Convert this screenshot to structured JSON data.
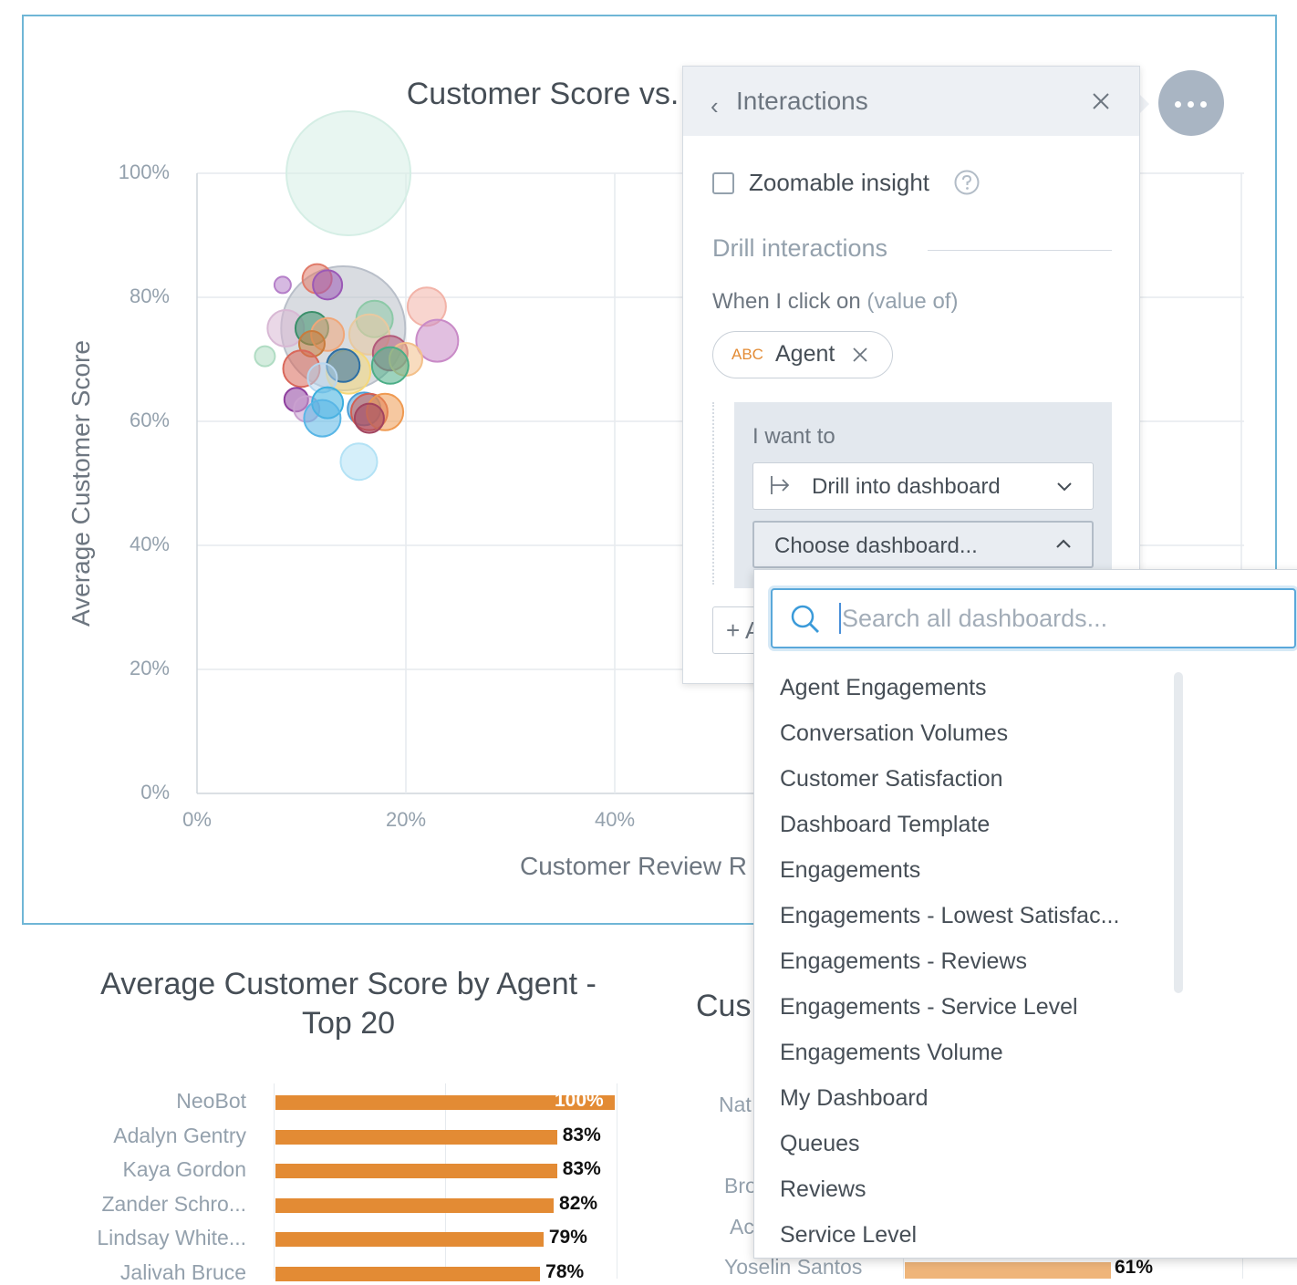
{
  "scatter_chart": {
    "title": "Customer Score vs.",
    "y_axis_title": "Average Customer Score",
    "x_axis_title": "Customer Review R",
    "options_icon": "more-horizontal-icon",
    "chart_data": {
      "type": "scatter",
      "title": "Customer Score vs.",
      "xlabel": "Customer Review R",
      "ylabel": "Average Customer Score",
      "xlim": [
        0,
        100
      ],
      "ylim": [
        0,
        100
      ],
      "x_ticks": [
        "0%",
        "20%",
        "40%"
      ],
      "y_ticks": [
        "0%",
        "20%",
        "40%",
        "60%",
        "80%",
        "100%"
      ],
      "grid": true,
      "points": [
        {
          "x": 14.5,
          "y": 100,
          "size": 68,
          "color": "#d5eee5"
        },
        {
          "x": 14,
          "y": 75,
          "size": 68,
          "color": "#b9bfc9"
        },
        {
          "x": 11.5,
          "y": 83,
          "size": 16,
          "color": "#e07b6a"
        },
        {
          "x": 12.5,
          "y": 82,
          "size": 16,
          "color": "#9b59b6"
        },
        {
          "x": 8.2,
          "y": 82,
          "size": 9,
          "color": "#b57fc9"
        },
        {
          "x": 22,
          "y": 78.5,
          "size": 21,
          "color": "#f2b3a8"
        },
        {
          "x": 23,
          "y": 73,
          "size": 23,
          "color": "#c98bc7"
        },
        {
          "x": 8.5,
          "y": 75,
          "size": 20,
          "color": "#d8b8d4"
        },
        {
          "x": 11,
          "y": 75,
          "size": 18,
          "color": "#3a8f6a"
        },
        {
          "x": 17,
          "y": 76.5,
          "size": 20,
          "color": "#8cc9a7"
        },
        {
          "x": 16.5,
          "y": 74,
          "size": 22,
          "color": "#e8c9a0"
        },
        {
          "x": 12.5,
          "y": 74,
          "size": 18,
          "color": "#f0a678"
        },
        {
          "x": 11,
          "y": 72.5,
          "size": 14,
          "color": "#c97b3c"
        },
        {
          "x": 6.5,
          "y": 70.5,
          "size": 11,
          "color": "#b0dcc3"
        },
        {
          "x": 18.5,
          "y": 71,
          "size": 19,
          "color": "#b25a7a"
        },
        {
          "x": 20,
          "y": 70,
          "size": 18,
          "color": "#f3c08a"
        },
        {
          "x": 18.5,
          "y": 69,
          "size": 20,
          "color": "#4cae87"
        },
        {
          "x": 14.5,
          "y": 68,
          "size": 24,
          "color": "#f5d87a"
        },
        {
          "x": 14,
          "y": 69,
          "size": 18,
          "color": "#2d6fa3"
        },
        {
          "x": 10,
          "y": 68.5,
          "size": 20,
          "color": "#d9675a"
        },
        {
          "x": 12,
          "y": 67,
          "size": 16,
          "color": "#b7d6ef"
        },
        {
          "x": 9.5,
          "y": 63.5,
          "size": 13,
          "color": "#8e3f9e"
        },
        {
          "x": 10.5,
          "y": 62,
          "size": 14,
          "color": "#c9a0cf"
        },
        {
          "x": 12.5,
          "y": 63,
          "size": 17,
          "color": "#3aaede"
        },
        {
          "x": 12,
          "y": 60.5,
          "size": 20,
          "color": "#59b6e6"
        },
        {
          "x": 16,
          "y": 62,
          "size": 18,
          "color": "#4c9fd6"
        },
        {
          "x": 16.5,
          "y": 61.5,
          "size": 20,
          "color": "#d45f52"
        },
        {
          "x": 18,
          "y": 61.5,
          "size": 20,
          "color": "#ef9a52"
        },
        {
          "x": 16.5,
          "y": 60.5,
          "size": 16,
          "color": "#a2445f"
        },
        {
          "x": 15.5,
          "y": 53.5,
          "size": 20,
          "color": "#b3e2f5"
        }
      ]
    }
  },
  "interactions_panel": {
    "title": "Interactions",
    "back_icon": "chevron-left-icon",
    "close_icon": "close-icon",
    "zoomable_label": "Zoomable insight",
    "zoomable_checked": false,
    "help_icon": "question-circle-icon",
    "drill_heading": "Drill interactions",
    "when_label": "When I click on",
    "when_suffix": "(value of)",
    "chip_type": "ABC",
    "chip_label": "Agent",
    "want_label": "I want to",
    "action_label": "Drill into dashboard",
    "dashboard_select_label": "Choose dashboard...",
    "add_label": "+ A"
  },
  "dashboard_dropdown": {
    "search_placeholder": "Search all dashboards...",
    "search_value": "",
    "items": [
      "Agent Engagements",
      "Conversation Volumes",
      "Customer Satisfaction",
      "Dashboard Template",
      "Engagements",
      "Engagements - Lowest Satisfac...",
      "Engagements - Reviews",
      "Engagements - Service Level",
      "Engagements Volume",
      "My Dashboard",
      "Queues",
      "Reviews",
      "Service Level"
    ]
  },
  "bar_chart": {
    "title": "Average Customer Score by Agent - Top 20",
    "bar_color": "#e38b34",
    "chart_data": {
      "type": "bar",
      "orientation": "horizontal",
      "title": "Average Customer Score by Agent - Top 20",
      "categories": [
        "NeoBot",
        "Adalyn Gentry",
        "Kaya Gordon",
        "Zander Schro...",
        "Lindsay White...",
        "Jalivah Bruce"
      ],
      "values": [
        100,
        83,
        83,
        82,
        79,
        78
      ],
      "value_labels": [
        "100%",
        "83%",
        "83%",
        "82%",
        "79%",
        "78%"
      ],
      "xlim": [
        0,
        100
      ]
    }
  },
  "right_chart_partial": {
    "title": "Cus",
    "labels": [
      "Nat",
      "Bro",
      "Ac",
      "Yoselin Santos"
    ],
    "last_value_label": "61%",
    "last_value": 61
  }
}
